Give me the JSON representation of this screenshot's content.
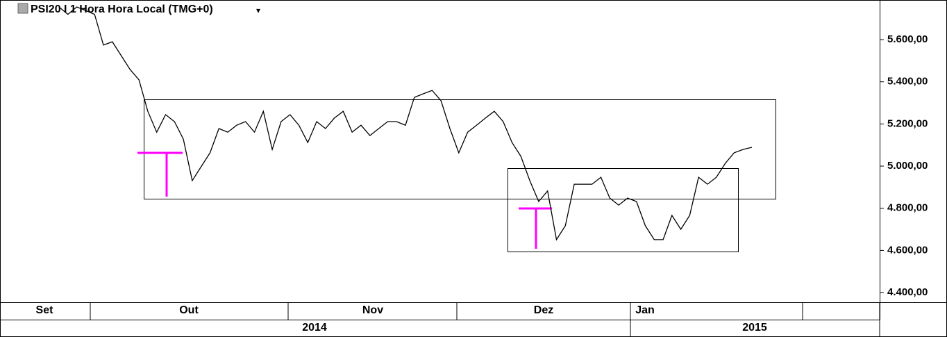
{
  "chart_data": {
    "type": "line",
    "title": "PSI20 I 1 Hora Hora Local (TMG+0)",
    "color": "#000000",
    "values": [
      5755,
      5720,
      5755,
      5738,
      5720,
      5574,
      5590,
      5524,
      5458,
      5409,
      5260,
      5161,
      5244,
      5211,
      5128,
      4931,
      4997,
      5063,
      5178,
      5161,
      5194,
      5211,
      5161,
      5260,
      5079,
      5211,
      5244,
      5194,
      5112,
      5211,
      5178,
      5228,
      5260,
      5161,
      5194,
      5145,
      5178,
      5211,
      5211,
      5194,
      5326,
      5343,
      5359,
      5310,
      5178,
      5063,
      5161,
      5194,
      5228,
      5260,
      5211,
      5112,
      5046,
      4931,
      4832,
      4882,
      4651,
      4717,
      4914,
      4914,
      4914,
      4947,
      4848,
      4815,
      4848,
      4832,
      4717,
      4651,
      4651,
      4766,
      4700,
      4766,
      4947,
      4914,
      4947,
      5013,
      5063,
      5079,
      5089
    ],
    "ylim": [
      4354,
      5788
    ],
    "yticks": [
      {
        "value": 4400,
        "label": "4.400,00"
      },
      {
        "value": 4600,
        "label": "4.600,00"
      },
      {
        "value": 4800,
        "label": "4.800,00"
      },
      {
        "value": 5000,
        "label": "5.000,00"
      },
      {
        "value": 5200,
        "label": "5.200,00"
      },
      {
        "value": 5400,
        "label": "5.400,00"
      },
      {
        "value": 5600,
        "label": "5.600,00"
      }
    ],
    "grid": false,
    "month_labels": [
      "Set",
      "Out",
      "Nov",
      "Dez",
      "Jan"
    ],
    "year_labels": [
      "2014",
      "2015"
    ]
  }
}
